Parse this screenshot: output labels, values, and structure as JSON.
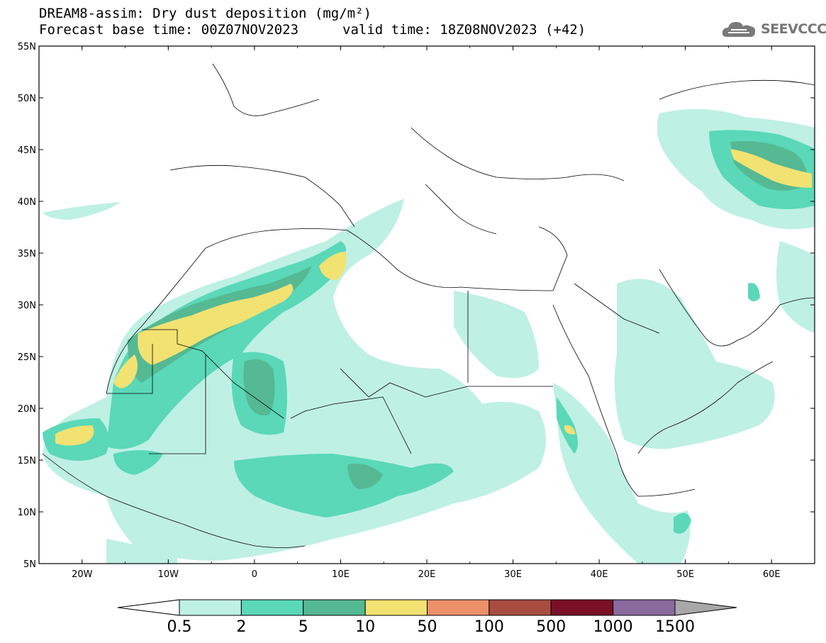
{
  "header": {
    "title_line1": "DREAM8-assim: Dry dust deposition (mg/m²)",
    "title_line2": "Forecast base time: 00Z07NOV2023",
    "valid_time": "valid time: 18Z08NOV2023 (+42)"
  },
  "logo": {
    "text": "SEEVCCC",
    "icon": "cloud-icon"
  },
  "map": {
    "lat_labels": [
      "55N",
      "50N",
      "45N",
      "40N",
      "35N",
      "30N",
      "25N",
      "20N",
      "15N",
      "10N",
      "5N"
    ],
    "lon_labels": [
      "20W",
      "10W",
      "0",
      "10E",
      "20E",
      "30E",
      "40E",
      "50E",
      "60E"
    ],
    "lat_range": [
      5,
      55
    ],
    "lon_range": [
      -25,
      65
    ]
  },
  "colorbar": {
    "levels": [
      "0.5",
      "2",
      "5",
      "10",
      "50",
      "100",
      "500",
      "1000",
      "1500"
    ],
    "colors": [
      "#ffffff",
      "#bff0e4",
      "#5ad8b8",
      "#55b994",
      "#f2e272",
      "#ec906a",
      "#a84c40",
      "#7a0f26",
      "#8a6a9e",
      "#a8a8a8"
    ]
  }
}
